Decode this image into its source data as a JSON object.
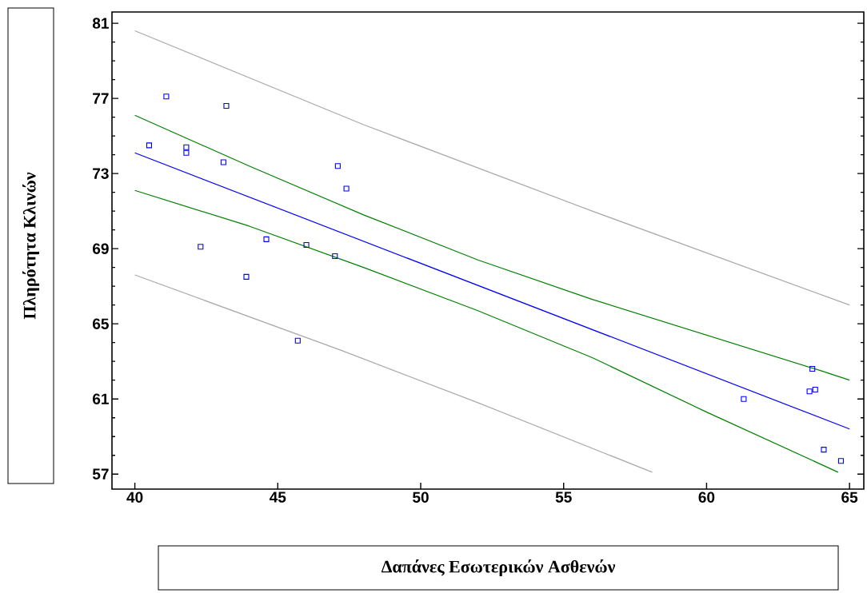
{
  "chart_data": {
    "type": "scatter",
    "xlabel": "Δαπάνες Εσωτερικών Ασθενών",
    "ylabel": "Πληρότητα Κλινών",
    "xlim": [
      39.2,
      65.5
    ],
    "ylim": [
      56.2,
      81.6
    ],
    "xticks": [
      40,
      45,
      50,
      55,
      60,
      65
    ],
    "yticks": [
      57,
      61,
      65,
      69,
      73,
      77,
      81
    ],
    "series": [
      {
        "type": "line",
        "color": "#a9a9a9",
        "x": [
          40,
          48,
          56,
          65
        ],
        "values": [
          80.6,
          75.6,
          71.0,
          66.0
        ]
      },
      {
        "type": "line",
        "color": "#a9a9a9",
        "x": [
          40,
          47.2,
          52,
          58.1
        ],
        "values": [
          67.6,
          63.6,
          60.8,
          57.1
        ]
      },
      {
        "type": "line",
        "color": "#008000",
        "x": [
          40,
          44,
          48,
          52,
          56,
          60,
          64,
          65
        ],
        "values": [
          76.1,
          73.4,
          70.8,
          68.4,
          66.3,
          64.4,
          62.5,
          62.0
        ]
      },
      {
        "type": "line",
        "color": "#008000",
        "x": [
          40,
          44,
          48,
          52,
          56,
          60,
          64.6
        ],
        "values": [
          72.1,
          70.2,
          68.0,
          65.7,
          63.2,
          60.3,
          57.1
        ]
      },
      {
        "type": "line",
        "color": "#0000ff",
        "x": [
          40,
          65
        ],
        "values": [
          74.1,
          59.4
        ]
      },
      {
        "type": "scatter",
        "marker": "square",
        "color": "#0000ff",
        "x": [
          40.5,
          41.1,
          41.8,
          41.8,
          42.3,
          43.1,
          43.2,
          43.9,
          44.6,
          45.7,
          46.0,
          47.0,
          47.1,
          47.4,
          61.3,
          63.6,
          63.8,
          63.7,
          64.1,
          64.7
        ],
        "values": [
          74.5,
          77.1,
          74.4,
          74.1,
          69.1,
          73.6,
          76.6,
          67.5,
          69.5,
          64.1,
          69.2,
          68.6,
          73.4,
          72.2,
          61.0,
          61.4,
          61.5,
          62.6,
          58.3,
          57.7
        ]
      }
    ]
  }
}
